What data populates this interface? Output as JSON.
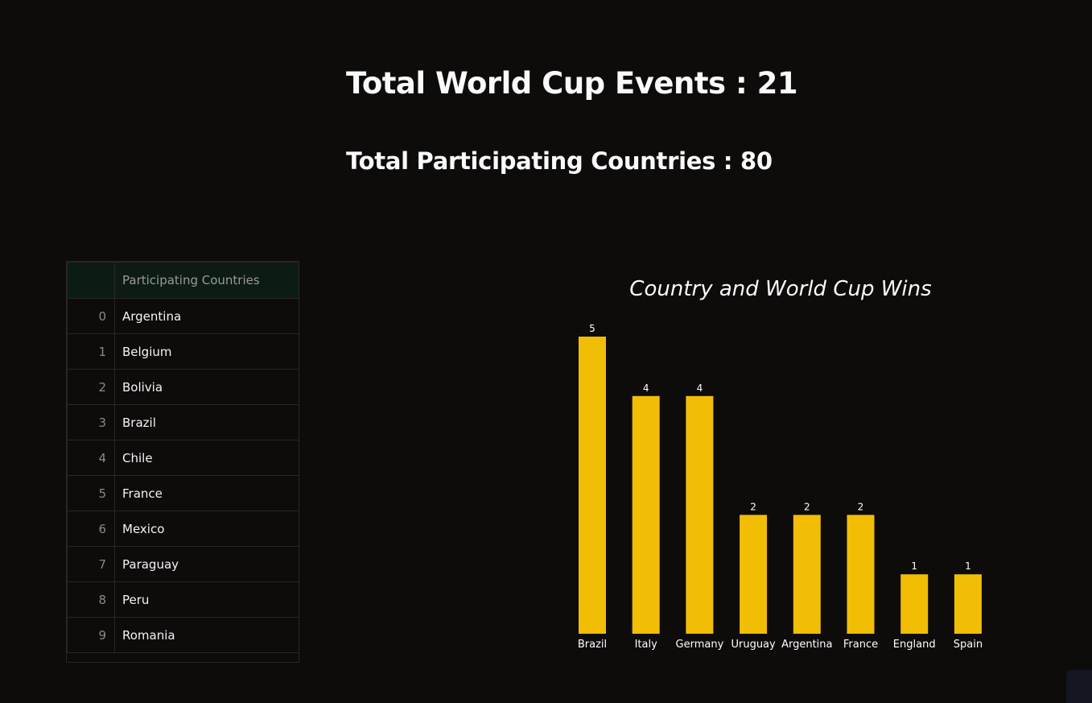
{
  "headline": {
    "events_label": "Total World Cup Events : 21",
    "countries_label": "Total Participating Countries : 80"
  },
  "table": {
    "index_header": "",
    "column_header": "Participating Countries",
    "rows": [
      {
        "index": "0",
        "country": "Argentina"
      },
      {
        "index": "1",
        "country": "Belgium"
      },
      {
        "index": "2",
        "country": "Bolivia"
      },
      {
        "index": "3",
        "country": "Brazil"
      },
      {
        "index": "4",
        "country": "Chile"
      },
      {
        "index": "5",
        "country": "France"
      },
      {
        "index": "6",
        "country": "Mexico"
      },
      {
        "index": "7",
        "country": "Paraguay"
      },
      {
        "index": "8",
        "country": "Peru"
      },
      {
        "index": "9",
        "country": "Romania"
      }
    ]
  },
  "chart_data": {
    "type": "bar",
    "title": "Country and World Cup Wins",
    "xlabel": "",
    "ylabel": "",
    "categories": [
      "Brazil",
      "Italy",
      "Germany",
      "Uruguay",
      "Argentina",
      "France",
      "England",
      "Spain"
    ],
    "values": [
      5,
      4,
      4,
      2,
      2,
      2,
      1,
      1
    ],
    "ylim": [
      0,
      5
    ],
    "grid": false,
    "legend": "none",
    "bar_color": "#f2bd05"
  },
  "colors": {
    "background": "#0e0b0b",
    "table_header_bg": "#0c1c15"
  }
}
